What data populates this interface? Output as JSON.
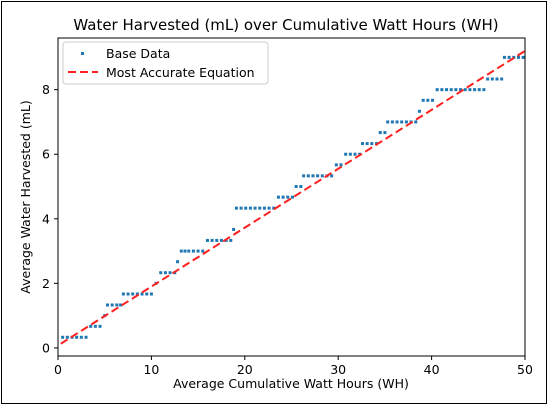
{
  "chart_data": {
    "type": "scatter",
    "title": "Water Harvested (mL) over Cumulative Watt Hours (WH)",
    "xlabel": "Average Cumulative Watt Hours (WH)",
    "ylabel": "Average Water Harvested (mL)",
    "xlim": [
      0,
      50
    ],
    "ylim": [
      -0.25,
      9.6
    ],
    "xticks": [
      "0",
      "10",
      "20",
      "30",
      "40",
      "50"
    ],
    "yticks": [
      "0",
      "2",
      "4",
      "6",
      "8"
    ],
    "xtick_values": [
      0,
      10,
      20,
      30,
      40,
      50
    ],
    "ytick_values": [
      0,
      2,
      4,
      6,
      8
    ],
    "grid": false,
    "legend_position": "top-left",
    "series": [
      {
        "name": "Base Data",
        "kind": "points",
        "color": "#1f77b4",
        "points": [
          [
            0.5,
            0.33
          ],
          [
            1.0,
            0.33
          ],
          [
            1.5,
            0.33
          ],
          [
            2.0,
            0.33
          ],
          [
            2.5,
            0.33
          ],
          [
            3.0,
            0.33
          ],
          [
            3.5,
            0.67
          ],
          [
            4.0,
            0.67
          ],
          [
            4.5,
            0.67
          ],
          [
            5.0,
            1.0
          ],
          [
            5.3,
            1.33
          ],
          [
            5.8,
            1.33
          ],
          [
            6.3,
            1.33
          ],
          [
            6.7,
            1.33
          ],
          [
            7.0,
            1.67
          ],
          [
            7.5,
            1.67
          ],
          [
            8.0,
            1.67
          ],
          [
            8.5,
            1.67
          ],
          [
            9.0,
            1.67
          ],
          [
            9.5,
            1.67
          ],
          [
            10.0,
            1.67
          ],
          [
            10.5,
            2.0
          ],
          [
            11.0,
            2.33
          ],
          [
            11.5,
            2.33
          ],
          [
            12.0,
            2.33
          ],
          [
            12.5,
            2.33
          ],
          [
            12.8,
            2.67
          ],
          [
            13.2,
            3.0
          ],
          [
            13.6,
            3.0
          ],
          [
            14.0,
            3.0
          ],
          [
            14.5,
            3.0
          ],
          [
            15.0,
            3.0
          ],
          [
            15.5,
            3.0
          ],
          [
            16.0,
            3.33
          ],
          [
            16.5,
            3.33
          ],
          [
            17.0,
            3.33
          ],
          [
            17.5,
            3.33
          ],
          [
            18.0,
            3.33
          ],
          [
            18.5,
            3.33
          ],
          [
            18.8,
            3.67
          ],
          [
            19.1,
            4.33
          ],
          [
            19.6,
            4.33
          ],
          [
            20.1,
            4.33
          ],
          [
            20.6,
            4.33
          ],
          [
            21.1,
            4.33
          ],
          [
            21.6,
            4.33
          ],
          [
            22.1,
            4.33
          ],
          [
            22.6,
            4.33
          ],
          [
            23.1,
            4.33
          ],
          [
            23.6,
            4.67
          ],
          [
            24.1,
            4.67
          ],
          [
            24.6,
            4.67
          ],
          [
            25.1,
            4.67
          ],
          [
            25.5,
            5.0
          ],
          [
            26.0,
            5.0
          ],
          [
            26.3,
            5.33
          ],
          [
            26.8,
            5.33
          ],
          [
            27.3,
            5.33
          ],
          [
            27.8,
            5.33
          ],
          [
            28.3,
            5.33
          ],
          [
            28.8,
            5.33
          ],
          [
            29.3,
            5.33
          ],
          [
            29.8,
            5.67
          ],
          [
            30.3,
            5.67
          ],
          [
            30.8,
            6.0
          ],
          [
            31.3,
            6.0
          ],
          [
            31.8,
            6.0
          ],
          [
            32.3,
            6.0
          ],
          [
            32.6,
            6.33
          ],
          [
            33.1,
            6.33
          ],
          [
            33.6,
            6.33
          ],
          [
            34.1,
            6.33
          ],
          [
            34.5,
            6.67
          ],
          [
            35.0,
            6.67
          ],
          [
            35.3,
            7.0
          ],
          [
            35.8,
            7.0
          ],
          [
            36.3,
            7.0
          ],
          [
            36.8,
            7.0
          ],
          [
            37.3,
            7.0
          ],
          [
            37.8,
            7.0
          ],
          [
            38.3,
            7.0
          ],
          [
            38.7,
            7.33
          ],
          [
            39.1,
            7.67
          ],
          [
            39.6,
            7.67
          ],
          [
            40.1,
            7.67
          ],
          [
            40.6,
            8.0
          ],
          [
            41.1,
            8.0
          ],
          [
            41.6,
            8.0
          ],
          [
            42.1,
            8.0
          ],
          [
            42.6,
            8.0
          ],
          [
            43.1,
            8.0
          ],
          [
            43.6,
            8.0
          ],
          [
            44.1,
            8.0
          ],
          [
            44.6,
            8.0
          ],
          [
            45.1,
            8.0
          ],
          [
            45.6,
            8.0
          ],
          [
            46.0,
            8.33
          ],
          [
            46.5,
            8.33
          ],
          [
            47.0,
            8.33
          ],
          [
            47.5,
            8.33
          ],
          [
            47.8,
            9.0
          ],
          [
            48.3,
            9.0
          ],
          [
            48.8,
            9.0
          ],
          [
            49.3,
            9.0
          ],
          [
            49.8,
            9.0
          ]
        ]
      },
      {
        "name": "Most Accurate Equation",
        "kind": "line",
        "style": "dashed",
        "color": "#ff2020",
        "x": [
          0.3,
          50
        ],
        "y": [
          0.13,
          9.2
        ]
      }
    ]
  }
}
